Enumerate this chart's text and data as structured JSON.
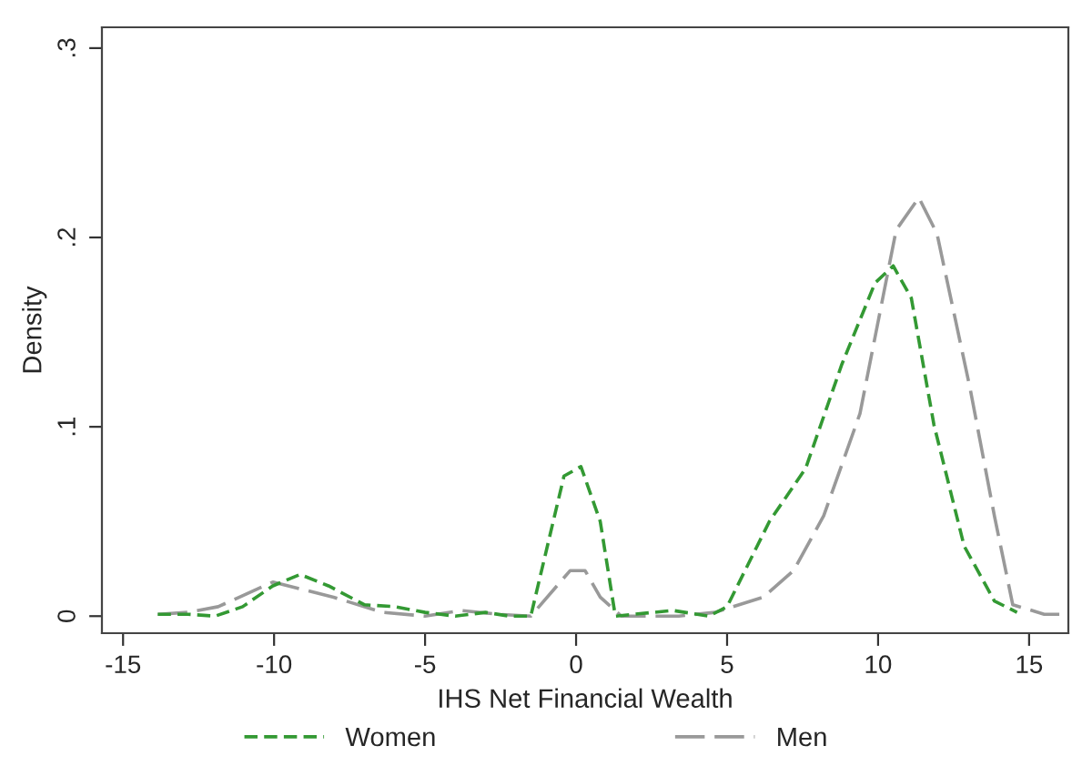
{
  "chart_data": {
    "type": "line",
    "xlabel": "IHS Net Financial Wealth",
    "ylabel": "Density",
    "xlim": [
      -15.7,
      16.3
    ],
    "ylim": [
      -0.009,
      0.311
    ],
    "xticks": [
      {
        "value": -15,
        "label": "-15"
      },
      {
        "value": -10,
        "label": "-10"
      },
      {
        "value": -5,
        "label": "-5"
      },
      0,
      5,
      10,
      15
    ],
    "yticks": [
      0,
      {
        "value": 0.1,
        "label": ".1"
      },
      {
        "value": 0.2,
        "label": ".2"
      },
      {
        "value": 0.3,
        "label": ".3"
      }
    ],
    "grid": false,
    "legend": "bottom",
    "marker": "none",
    "line_style": "dashed",
    "series": [
      {
        "name": "Women",
        "color": "#339933",
        "x": [
          -13.85,
          -12.85,
          -11.95,
          -11.04,
          -10.04,
          -9.14,
          -8.2,
          -7.0,
          -6.0,
          -5.0,
          -4.0,
          -3.0,
          -2.2,
          -1.5,
          -0.4,
          0.16,
          0.8,
          1.3,
          3.2,
          4.4,
          5.0,
          6.4,
          7.6,
          8.8,
          9.9,
          10.5,
          11.1,
          11.85,
          12.85,
          13.85,
          14.6
        ],
        "values": [
          0.001,
          0.001,
          0.0,
          0.005,
          0.016,
          0.022,
          0.016,
          0.006,
          0.005,
          0.002,
          0.0,
          0.002,
          0.0,
          0.0,
          0.074,
          0.079,
          0.05,
          0.0,
          0.003,
          0.0,
          0.005,
          0.05,
          0.078,
          0.133,
          0.176,
          0.185,
          0.168,
          0.101,
          0.037,
          0.008,
          0.002
        ]
      },
      {
        "name": "Men",
        "color": "#999999",
        "x": [
          -13.85,
          -12.85,
          -11.85,
          -10.04,
          -8.03,
          -6.4,
          -5.0,
          -3.8,
          -2.6,
          -1.5,
          -0.2,
          0.3,
          0.8,
          1.5,
          3.4,
          4.6,
          6.2,
          7.2,
          8.2,
          9.4,
          10.6,
          11.35,
          11.95,
          13.05,
          13.85,
          14.46,
          15.5,
          16.27
        ],
        "values": [
          0.001,
          0.002,
          0.005,
          0.018,
          0.01,
          0.002,
          0.0,
          0.003,
          0.001,
          0.0,
          0.024,
          0.024,
          0.01,
          0.0,
          0.0,
          0.002,
          0.01,
          0.024,
          0.053,
          0.107,
          0.204,
          0.221,
          0.202,
          0.12,
          0.053,
          0.006,
          0.001,
          0.001
        ]
      }
    ]
  }
}
